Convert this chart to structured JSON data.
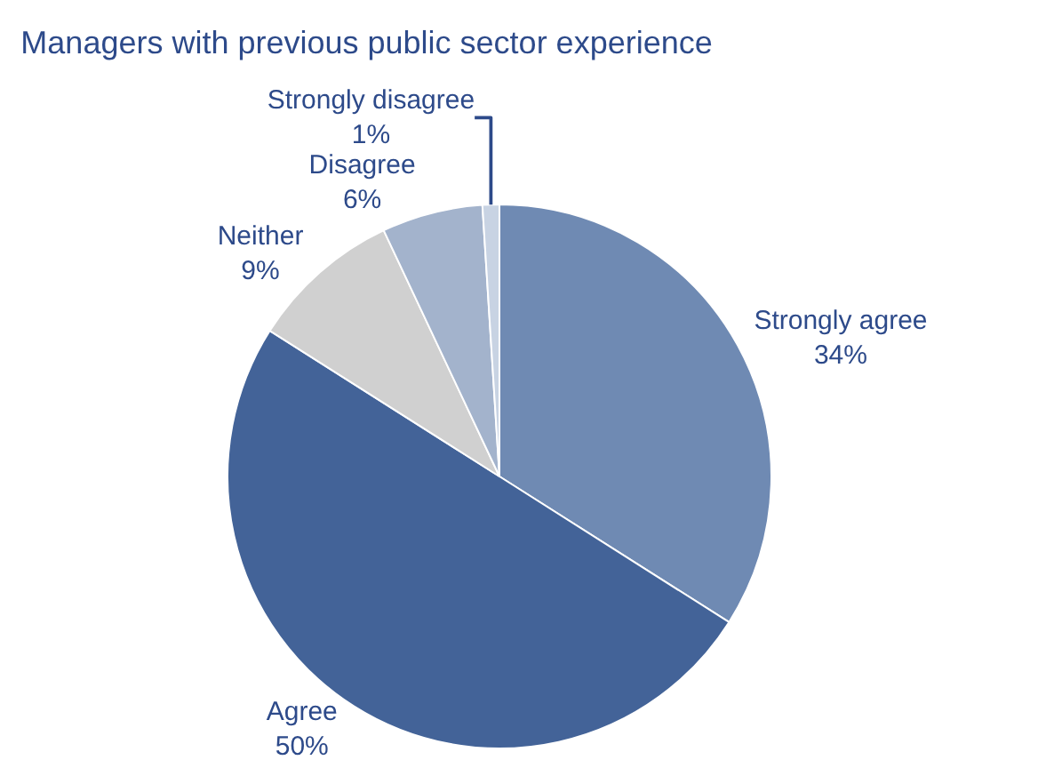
{
  "chart_data": {
    "type": "pie",
    "title": "Managers with previous public sector experience",
    "categories": [
      "Strongly agree",
      "Agree",
      "Neither",
      "Disagree",
      "Strongly disagree"
    ],
    "values": [
      34,
      50,
      9,
      6,
      1
    ],
    "value_labels": [
      "34%",
      "50%",
      "9%",
      "6%",
      "1%"
    ],
    "colors": [
      "#6f8ab3",
      "#436398",
      "#d0d0d0",
      "#a3b3cc",
      "#c8d3e3"
    ],
    "legend": false
  }
}
